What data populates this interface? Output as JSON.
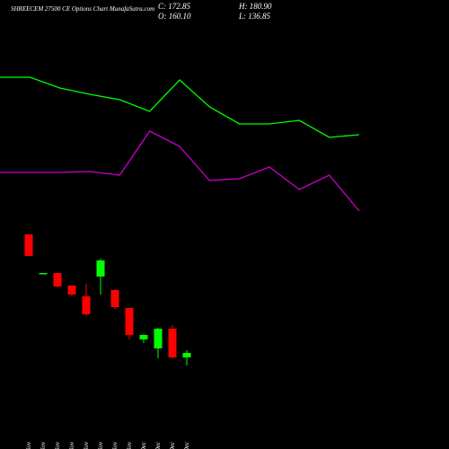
{
  "chart_data": [
    {
      "type": "line",
      "title": "SHREECEM 27500 CE Options Chart MunafaSutra.com",
      "header": [
        "C: 172.85",
        "H: 180.90",
        "O: 160.10",
        "L: 136.85"
      ],
      "ylim": [
        0,
        200
      ],
      "series": [
        {
          "color": "#00ff00",
          "values": [
            164,
            164,
            152,
            145,
            139,
            126,
            161,
            131,
            112,
            112,
            116,
            97,
            100
          ]
        },
        {
          "color": "#cc00cc",
          "values": [
            58,
            58,
            58,
            59,
            55,
            104,
            87,
            49,
            51,
            64,
            39,
            55,
            15
          ]
        }
      ]
    },
    {
      "type": "candlestick",
      "categories": [
        "18 Nov",
        "19 Nov",
        "21 Nov",
        "22 Nov",
        "25 Nov",
        "26 Nov",
        "27 Nov",
        "29 Nov",
        "01 Dec",
        "02 Dec",
        "03 Dec",
        "04 Dec"
      ],
      "open": [
        509.5,
        399.8,
        399.8,
        364.1,
        333.5,
        389.6,
        351.4,
        300.4,
        211.1,
        185.6,
        241.7,
        160.1
      ],
      "high": [
        509.5,
        399.8,
        399.8,
        364.1,
        369.2,
        440.6,
        353.9,
        300.4,
        226.4,
        244.3,
        251.9,
        180.9
      ],
      "low": [
        448.3,
        399.8,
        359.0,
        333.5,
        277.4,
        338.6,
        297.8,
        211.1,
        200.9,
        157.6,
        157.6,
        136.85
      ],
      "close": [
        448.3,
        399.8,
        361.6,
        338.6,
        282.5,
        435.5,
        302.9,
        223.9,
        223.9,
        241.7,
        160.1,
        172.85
      ],
      "up_color": "#00ff00",
      "down_color": "#ff0000",
      "ylim": [
        104,
        537.5
      ]
    }
  ]
}
